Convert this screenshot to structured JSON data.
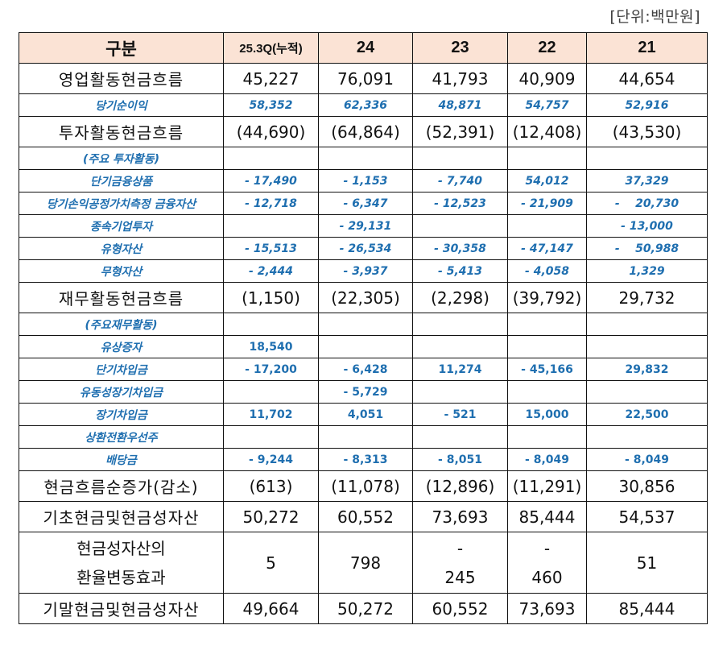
{
  "unit_label": "[단위:백만원]",
  "header": {
    "label": "구분",
    "columns": [
      "25.3Q(누적)",
      "24",
      "23",
      "22",
      "21"
    ]
  },
  "rows": [
    {
      "type": "main",
      "label": "영업활동현금흐름",
      "values": [
        "45,227",
        "76,091",
        "41,793",
        "40,909",
        "44,654"
      ],
      "neg": [
        false,
        false,
        false,
        false,
        false
      ]
    },
    {
      "type": "sub-italic",
      "label": "당기순이익",
      "values": [
        "58,352",
        "62,336",
        "48,871",
        "54,757",
        "52,916"
      ]
    },
    {
      "type": "main",
      "label": "투자활동현금흐름",
      "values": [
        "(44,690)",
        "(64,864)",
        "(52,391)",
        "(12,408)",
        "(43,530)"
      ],
      "neg": [
        true,
        true,
        true,
        true,
        true
      ]
    },
    {
      "type": "sub-italic",
      "label": "(주요 투자활동)",
      "values": [
        "",
        "",
        "",
        "",
        ""
      ]
    },
    {
      "type": "sub-italic",
      "label": "단기금융상품",
      "values": [
        "- 17,490",
        "- 1,153",
        "- 7,740",
        "54,012",
        "37,329"
      ]
    },
    {
      "type": "sub-italic",
      "label": "당기손익공정가치측정 금융자산",
      "values": [
        "- 12,718",
        "- 6,347",
        "- 12,523",
        "- 21,909",
        "-    20,730"
      ]
    },
    {
      "type": "sub-italic",
      "label": "종속기업투자",
      "values": [
        "",
        "- 29,131",
        "",
        "",
        "- 13,000"
      ]
    },
    {
      "type": "sub-italic",
      "label": "유형자산",
      "values": [
        "- 15,513",
        "- 26,534",
        "- 30,358",
        "- 47,147",
        "-    50,988"
      ]
    },
    {
      "type": "sub-italic",
      "label": "무형자산",
      "values": [
        "- 2,444",
        "- 3,937",
        "- 5,413",
        "- 4,058",
        "1,329"
      ]
    },
    {
      "type": "main",
      "label": "재무활동현금흐름",
      "values": [
        "(1,150)",
        "(22,305)",
        "(2,298)",
        "(39,792)",
        "29,732"
      ],
      "neg": [
        true,
        true,
        true,
        true,
        false
      ]
    },
    {
      "type": "sub",
      "label": "(주요재무활동)",
      "values": [
        "",
        "",
        "",
        "",
        ""
      ]
    },
    {
      "type": "sub",
      "label": "유상증자",
      "values": [
        "18,540",
        "",
        "",
        "",
        ""
      ]
    },
    {
      "type": "sub",
      "label": "단기차입금",
      "values": [
        "- 17,200",
        "- 6,428",
        "11,274",
        "- 45,166",
        "29,832"
      ]
    },
    {
      "type": "sub",
      "label": "유동성장기차입금",
      "values": [
        "",
        "- 5,729",
        "",
        "",
        ""
      ]
    },
    {
      "type": "sub",
      "label": "장기차입금",
      "values": [
        "11,702",
        "4,051",
        "- 521",
        "15,000",
        "22,500"
      ]
    },
    {
      "type": "sub",
      "label": "상환전환우선주",
      "values": [
        "",
        "",
        "",
        "",
        ""
      ]
    },
    {
      "type": "sub",
      "label": "배당금",
      "values": [
        "- 9,244",
        "- 8,313",
        "- 8,051",
        "- 8,049",
        "- 8,049"
      ]
    },
    {
      "type": "main",
      "label": "현금흐름순증가(감소)",
      "values": [
        "(613)",
        "(11,078)",
        "(12,896)",
        "(11,291)",
        "30,856"
      ],
      "neg": [
        true,
        true,
        true,
        true,
        false
      ]
    },
    {
      "type": "main",
      "label": "기초현금및현금성자산",
      "values": [
        "50,272",
        "60,552",
        "73,693",
        "85,444",
        "54,537"
      ],
      "neg": [
        false,
        false,
        false,
        false,
        false
      ]
    },
    {
      "type": "tall",
      "label_line1": "현금성자산의",
      "label_line2": "환율변동효과",
      "values": [
        "5",
        "798",
        "-\n245",
        "-\n460",
        "51"
      ]
    },
    {
      "type": "main",
      "label": "기말현금및현금성자산",
      "values": [
        "49,664",
        "50,272",
        "60,552",
        "73,693",
        "85,444"
      ],
      "neg": [
        false,
        false,
        false,
        false,
        false
      ]
    }
  ],
  "colors": {
    "header_bg": "#fbe3d5",
    "sub_text": "#1f6fb0",
    "negative_text": "#d42a2a",
    "main_text": "#111111"
  }
}
